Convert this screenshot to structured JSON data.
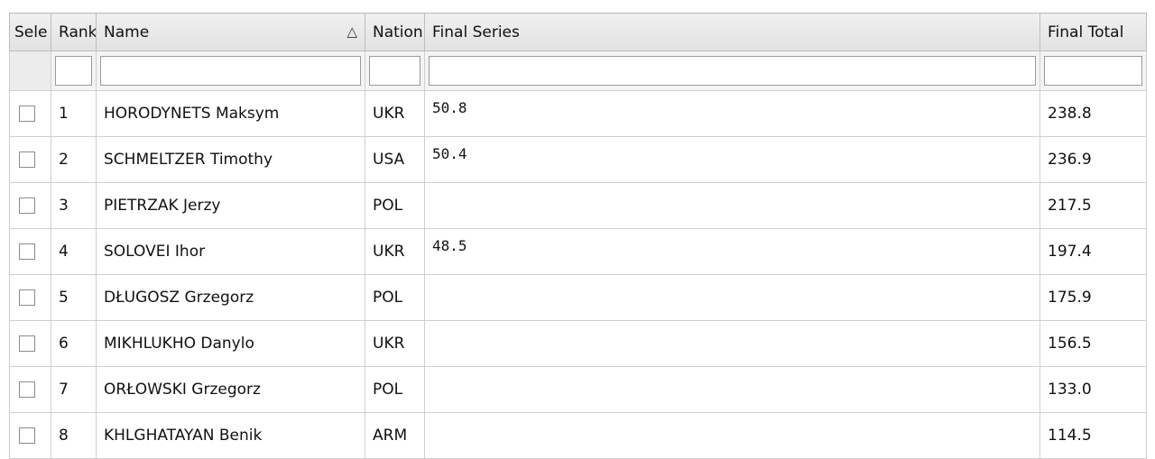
{
  "table": {
    "columns": [
      "Sele",
      "Rank",
      "Name",
      "Nation",
      "Final Series",
      "Final Total"
    ],
    "rows": [
      {
        "rank": "1",
        "name": "HORODYNETS Maksym",
        "nation": "UKR",
        "final_series": "50.8",
        "final_total": "238.8"
      },
      {
        "rank": "2",
        "name": "SCHMELTZER Timothy",
        "nation": "USA",
        "final_series": "50.4",
        "final_total": "236.9"
      },
      {
        "rank": "3",
        "name": "PIETRZAK Jerzy",
        "nation": "POL",
        "final_series": null,
        "final_total": "217.5"
      },
      {
        "rank": "4",
        "name": "SOLOVEI Ihor",
        "nation": "UKR",
        "final_series": "48.5",
        "final_total": "197.4"
      },
      {
        "rank": "5",
        "name": "DŁUGOSZ Grzegorz",
        "nation": "POL",
        "final_series": null,
        "final_total": "175.9"
      },
      {
        "rank": "6",
        "name": "MIKHLUKHO Danylo",
        "nation": "UKR",
        "final_series": null,
        "final_total": "156.5"
      },
      {
        "rank": "7",
        "name": "ORŁOWSKI Grzegorz",
        "nation": "POL",
        "final_series": null,
        "final_total": "133.0"
      },
      {
        "rank": "8",
        "name": "KHLGHATAYAN Benik",
        "nation": "ARM",
        "final_series": null,
        "final_total": "114.5"
      }
    ]
  }
}
